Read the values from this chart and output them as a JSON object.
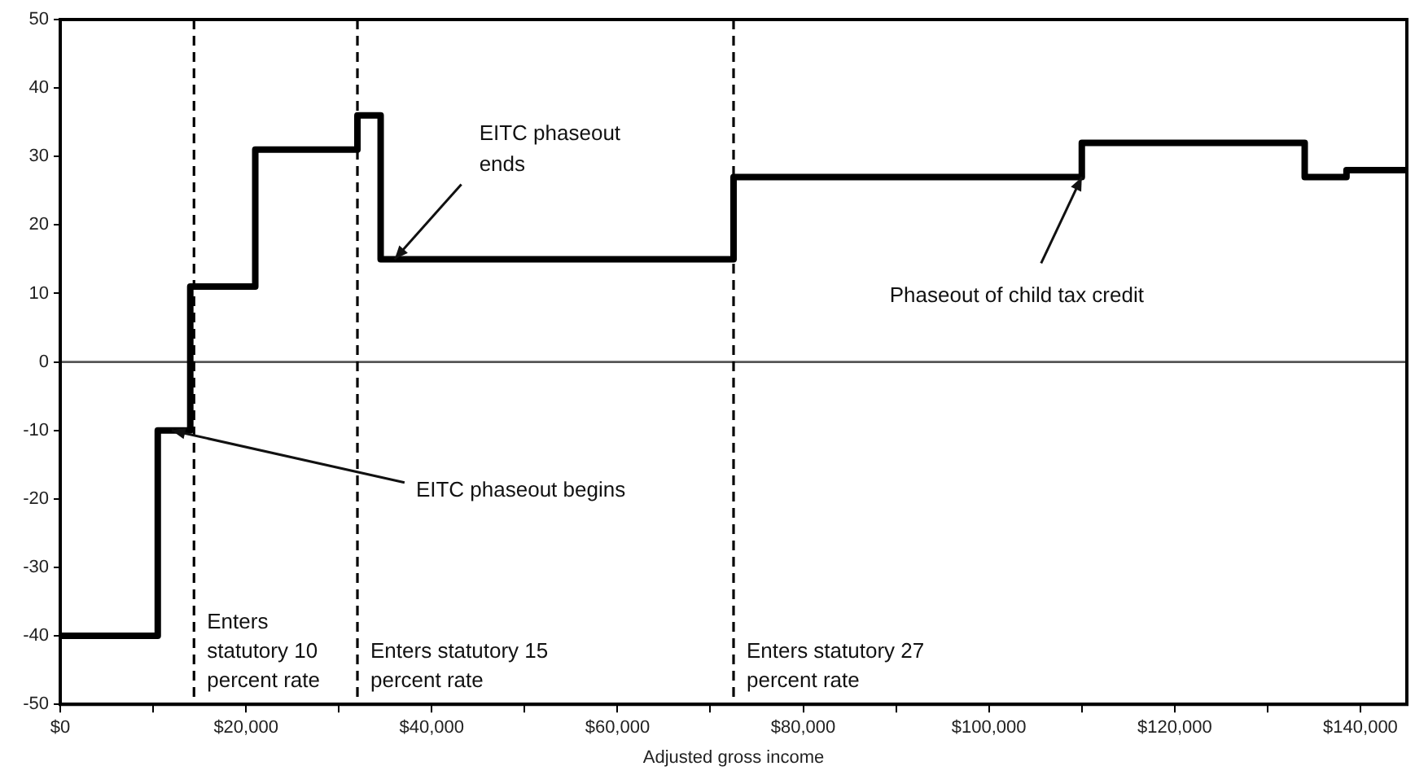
{
  "chart_data": {
    "type": "step",
    "xlabel": "Adjusted gross income",
    "x": [
      0,
      10500,
      14000,
      21000,
      32000,
      34500,
      72500,
      110000,
      134000,
      138500,
      145000
    ],
    "series": [
      {
        "color": "#000000",
        "values": [
          -40,
          -10,
          11,
          31,
          36,
          15,
          27,
          32,
          27,
          28,
          28
        ]
      }
    ],
    "xlim": [
      0,
      145000
    ],
    "xticks": [
      {
        "value": 0,
        "label": "$0"
      },
      {
        "value": 10000,
        "label": null
      },
      {
        "value": 20000,
        "label": "$20,000"
      },
      {
        "value": 30000,
        "label": null
      },
      {
        "value": 40000,
        "label": "$40,000"
      },
      {
        "value": 50000,
        "label": null
      },
      {
        "value": 60000,
        "label": "$60,000"
      },
      {
        "value": 70000,
        "label": null
      },
      {
        "value": 80000,
        "label": "$80,000"
      },
      {
        "value": 90000,
        "label": null
      },
      {
        "value": 100000,
        "label": "$100,000"
      },
      {
        "value": 110000,
        "label": null
      },
      {
        "value": 120000,
        "label": "$120,000"
      },
      {
        "value": 130000,
        "label": null
      },
      {
        "value": 140000,
        "label": "$140,000"
      }
    ],
    "ylim": [
      -50,
      50
    ],
    "yticks": [
      -50,
      -40,
      -30,
      -20,
      -10,
      0,
      10,
      20,
      30,
      40,
      50
    ],
    "ref_lines": [
      {
        "axis": "y",
        "value": 0,
        "color": "#555555",
        "line_style": "solid"
      },
      {
        "axis": "x",
        "value": 14400,
        "label": "Enters statutory 10 percent rate",
        "color": "#000000",
        "line_style": "dashed"
      },
      {
        "axis": "x",
        "value": 32000,
        "label": "Enters statutory 15 percent rate",
        "color": "#000000",
        "line_style": "dashed"
      },
      {
        "axis": "x",
        "value": 72500,
        "label": "Enters statutory 27 percent rate",
        "color": "#000000",
        "line_style": "dashed"
      }
    ],
    "annotations": [
      {
        "text": "EITC phaseout ends",
        "x": 36000,
        "y": 15
      },
      {
        "text": "EITC phaseout begins",
        "x": 12000,
        "y": -10
      },
      {
        "text": "Phaseout of child tax credit",
        "x": 110000,
        "y": 27
      }
    ],
    "grid": false,
    "legend": false,
    "marker": "none",
    "line_style": "solid"
  }
}
